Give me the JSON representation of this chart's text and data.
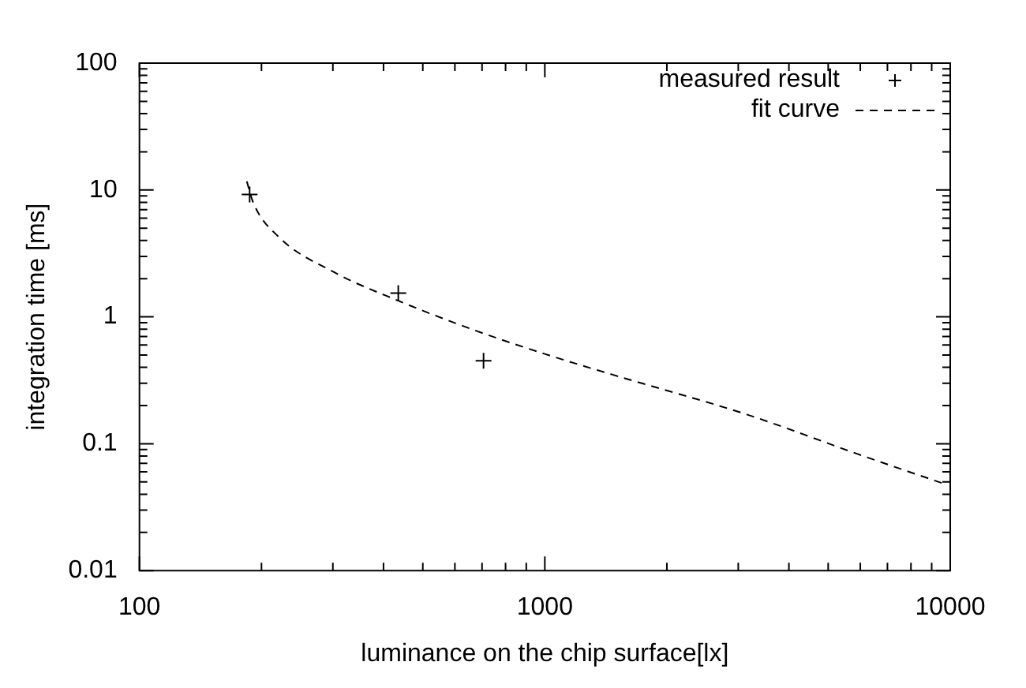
{
  "chart_data": {
    "type": "scatter",
    "xlabel": "luminance on the chip surface[lx]",
    "ylabel": "integration time [ms]",
    "log": "xy",
    "xlim": [
      100,
      10000
    ],
    "ylim": [
      0.01,
      100
    ],
    "xticks": [
      100,
      {
        "value": 200,
        "label": null
      },
      {
        "value": 300,
        "label": null
      },
      {
        "value": 400,
        "label": null
      },
      {
        "value": 500,
        "label": null
      },
      {
        "value": 600,
        "label": null
      },
      {
        "value": 700,
        "label": null
      },
      {
        "value": 800,
        "label": null
      },
      {
        "value": 900,
        "label": null
      },
      1000,
      {
        "value": 2000,
        "label": null
      },
      {
        "value": 3000,
        "label": null
      },
      {
        "value": 4000,
        "label": null
      },
      {
        "value": 5000,
        "label": null
      },
      {
        "value": 6000,
        "label": null
      },
      {
        "value": 7000,
        "label": null
      },
      {
        "value": 8000,
        "label": null
      },
      {
        "value": 9000,
        "label": null
      },
      10000
    ],
    "yticks": [
      0.01,
      {
        "value": 0.02,
        "label": null
      },
      {
        "value": 0.03,
        "label": null
      },
      {
        "value": 0.04,
        "label": null
      },
      {
        "value": 0.05,
        "label": null
      },
      {
        "value": 0.06,
        "label": null
      },
      {
        "value": 0.07,
        "label": null
      },
      {
        "value": 0.08,
        "label": null
      },
      {
        "value": 0.09,
        "label": null
      },
      0.1,
      {
        "value": 0.2,
        "label": null
      },
      {
        "value": 0.3,
        "label": null
      },
      {
        "value": 0.4,
        "label": null
      },
      {
        "value": 0.5,
        "label": null
      },
      {
        "value": 0.6,
        "label": null
      },
      {
        "value": 0.7,
        "label": null
      },
      {
        "value": 0.8,
        "label": null
      },
      {
        "value": 0.9,
        "label": null
      },
      1,
      {
        "value": 2,
        "label": null
      },
      {
        "value": 3,
        "label": null
      },
      {
        "value": 4,
        "label": null
      },
      {
        "value": 5,
        "label": null
      },
      {
        "value": 6,
        "label": null
      },
      {
        "value": 7,
        "label": null
      },
      {
        "value": 8,
        "label": null
      },
      {
        "value": 9,
        "label": null
      },
      10,
      {
        "value": 20,
        "label": null
      },
      {
        "value": 30,
        "label": null
      },
      {
        "value": 40,
        "label": null
      },
      {
        "value": 50,
        "label": null
      },
      {
        "value": 60,
        "label": null
      },
      {
        "value": 70,
        "label": null
      },
      {
        "value": 80,
        "label": null
      },
      {
        "value": 90,
        "label": null
      },
      100
    ],
    "grid": false,
    "legend": "top right",
    "series": [
      {
        "name": "measured result",
        "type": "scatter",
        "marker": "cross",
        "color": "#000000",
        "x": [
          187,
          435,
          706
        ],
        "values": [
          9.2,
          1.54,
          0.45
        ]
      },
      {
        "name": "fit curve",
        "type": "line",
        "marker": "none",
        "line_style": "dashed",
        "color": "#000000",
        "x": [
          184,
          191,
          220,
          302,
          435,
          667,
          1000,
          1470,
          3150,
          5910,
          9530
        ],
        "values": [
          11.7,
          7.9,
          4.3,
          2.25,
          1.34,
          0.79,
          0.51,
          0.35,
          0.17,
          0.083,
          0.049
        ]
      }
    ]
  }
}
